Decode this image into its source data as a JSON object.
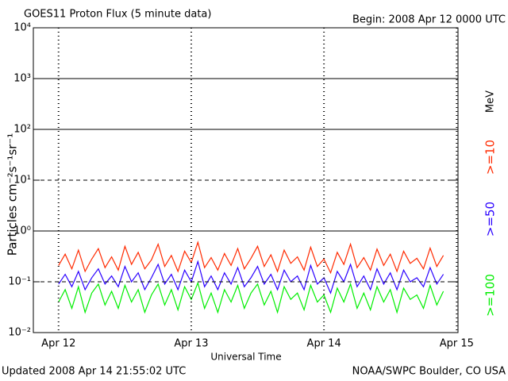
{
  "chart_data": {
    "type": "line",
    "title": "GOES11 Proton Flux (5 minute data)",
    "subtitle": "Begin: 2008 Apr 12 0000 UTC",
    "xlabel": "Universal Time",
    "ylabel": "Particles cm⁻²s⁻¹sr⁻¹",
    "legend_unit": "MeV",
    "footer_left": "Updated 2008 Apr 14 21:55:02 UTC",
    "footer_right": "NOAA/SWPC Boulder, CO USA",
    "yscale": "log",
    "xlim": [
      -0.19,
      3.01
    ],
    "ylim": [
      0.01,
      10000
    ],
    "xticks": [
      {
        "value": 0,
        "label": "Apr 12"
      },
      {
        "value": 1,
        "label": "Apr 13"
      },
      {
        "value": 2,
        "label": "Apr 14"
      },
      {
        "value": 3,
        "label": "Apr 15"
      }
    ],
    "yticks": [
      {
        "value": 0.01,
        "label": "10⁻²"
      },
      {
        "value": 0.1,
        "label": "10⁻¹"
      },
      {
        "value": 1,
        "label": "10⁰"
      },
      {
        "value": 10,
        "label": "10¹"
      },
      {
        "value": 100,
        "label": "10²"
      },
      {
        "value": 1000,
        "label": "10³"
      },
      {
        "value": 10000,
        "label": "10⁴"
      }
    ],
    "grid": true,
    "x": [
      0,
      0.05,
      0.1,
      0.15,
      0.2,
      0.25,
      0.3,
      0.35,
      0.4,
      0.45,
      0.5,
      0.55,
      0.6,
      0.65,
      0.7,
      0.75,
      0.8,
      0.85,
      0.9,
      0.95,
      1,
      1.05,
      1.1,
      1.15,
      1.2,
      1.25,
      1.3,
      1.35,
      1.4,
      1.45,
      1.5,
      1.55,
      1.6,
      1.65,
      1.7,
      1.75,
      1.8,
      1.85,
      1.9,
      1.95,
      2,
      2.05,
      2.1,
      2.15,
      2.2,
      2.25,
      2.3,
      2.35,
      2.4,
      2.45,
      2.5,
      2.55,
      2.6,
      2.65,
      2.7,
      2.75,
      2.8,
      2.85,
      2.9
    ],
    "series": [
      {
        "name": ">=10",
        "color": "#ff2a00",
        "values": [
          0.21,
          0.35,
          0.18,
          0.42,
          0.16,
          0.28,
          0.45,
          0.19,
          0.31,
          0.17,
          0.5,
          0.22,
          0.38,
          0.18,
          0.27,
          0.55,
          0.2,
          0.33,
          0.16,
          0.4,
          0.24,
          0.6,
          0.19,
          0.3,
          0.17,
          0.36,
          0.21,
          0.45,
          0.18,
          0.29,
          0.5,
          0.2,
          0.34,
          0.16,
          0.42,
          0.23,
          0.31,
          0.17,
          0.48,
          0.2,
          0.28,
          0.15,
          0.38,
          0.22,
          0.55,
          0.19,
          0.3,
          0.17,
          0.44,
          0.21,
          0.35,
          0.16,
          0.4,
          0.23,
          0.29,
          0.18,
          0.46,
          0.2,
          0.33
        ]
      },
      {
        "name": ">=50",
        "color": "#2a00ff",
        "values": [
          0.09,
          0.14,
          0.08,
          0.16,
          0.07,
          0.12,
          0.18,
          0.09,
          0.13,
          0.08,
          0.2,
          0.1,
          0.15,
          0.07,
          0.12,
          0.22,
          0.09,
          0.14,
          0.07,
          0.17,
          0.1,
          0.25,
          0.08,
          0.13,
          0.07,
          0.15,
          0.09,
          0.19,
          0.08,
          0.12,
          0.2,
          0.09,
          0.14,
          0.07,
          0.17,
          0.1,
          0.13,
          0.07,
          0.21,
          0.09,
          0.12,
          0.06,
          0.16,
          0.1,
          0.22,
          0.08,
          0.13,
          0.07,
          0.18,
          0.09,
          0.15,
          0.07,
          0.17,
          0.1,
          0.12,
          0.08,
          0.19,
          0.09,
          0.14
        ]
      },
      {
        "name": ">=100",
        "color": "#00ee00",
        "values": [
          0.04,
          0.07,
          0.03,
          0.08,
          0.025,
          0.06,
          0.09,
          0.035,
          0.065,
          0.03,
          0.085,
          0.04,
          0.07,
          0.025,
          0.055,
          0.09,
          0.035,
          0.07,
          0.028,
          0.08,
          0.045,
          0.095,
          0.03,
          0.06,
          0.025,
          0.07,
          0.04,
          0.085,
          0.03,
          0.06,
          0.09,
          0.035,
          0.065,
          0.025,
          0.08,
          0.045,
          0.06,
          0.028,
          0.085,
          0.04,
          0.055,
          0.025,
          0.075,
          0.04,
          0.09,
          0.03,
          0.06,
          0.028,
          0.08,
          0.04,
          0.07,
          0.025,
          0.075,
          0.045,
          0.055,
          0.03,
          0.085,
          0.035,
          0.065
        ]
      }
    ]
  }
}
